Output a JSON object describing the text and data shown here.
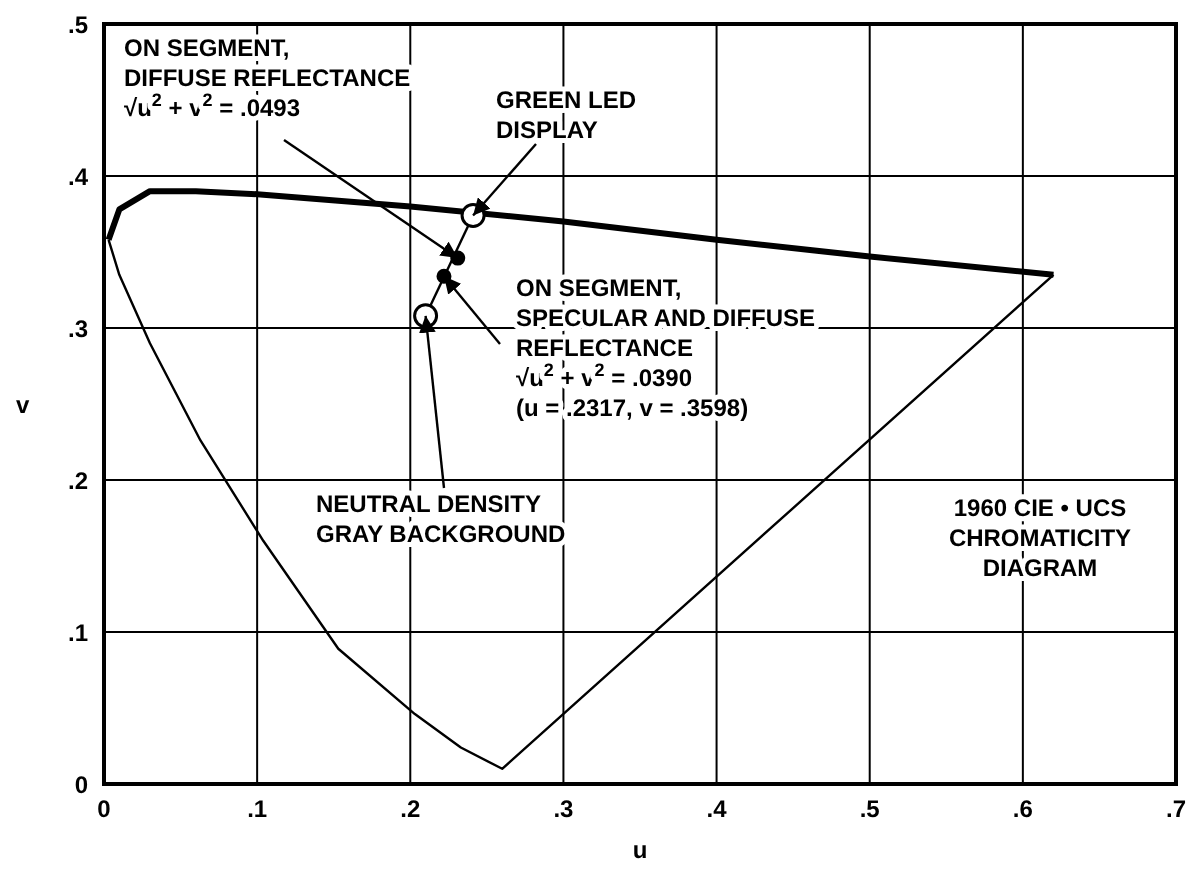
{
  "chart_data": {
    "type": "line",
    "xlabel": "u",
    "ylabel": "v",
    "xlim": [
      0,
      0.7
    ],
    "ylim": [
      0,
      0.5
    ],
    "xticks": [
      0,
      {
        "value": 0.1,
        "label": ".1"
      },
      {
        "value": 0.2,
        "label": ".2"
      },
      {
        "value": 0.3,
        "label": ".3"
      },
      {
        "value": 0.4,
        "label": ".4"
      },
      {
        "value": 0.5,
        "label": ".5"
      },
      {
        "value": 0.6,
        "label": ".6"
      },
      {
        "value": 0.7,
        "label": ".7"
      }
    ],
    "yticks": [
      0,
      {
        "value": 0.1,
        "label": ".1"
      },
      {
        "value": 0.2,
        "label": ".2"
      },
      {
        "value": 0.3,
        "label": ".3"
      },
      {
        "value": 0.4,
        "label": ".4"
      },
      {
        "value": 0.5,
        "label": ".5"
      }
    ],
    "grid": true,
    "series": [
      {
        "color": "#000000",
        "marker": "none",
        "x": [
          0.003,
          0.01,
          0.03,
          0.06,
          0.1,
          0.2,
          0.3,
          0.4,
          0.5,
          0.62
        ],
        "values": [
          0.358,
          0.378,
          0.39,
          0.39,
          0.388,
          0.38,
          0.37,
          0.358,
          0.347,
          0.335
        ]
      },
      {
        "color": "#000000",
        "marker": "none",
        "x": [
          0.003,
          0.01,
          0.03,
          0.063,
          0.104,
          0.153,
          0.203,
          0.233,
          0.26,
          0.62
        ],
        "values": [
          0.358,
          0.335,
          0.29,
          0.226,
          0.16,
          0.089,
          0.046,
          0.024,
          0.01,
          0.335
        ]
      },
      {
        "color": "#000000",
        "marker": "none",
        "x": [
          0.241,
          0.21
        ],
        "values": [
          0.374,
          0.308
        ]
      },
      {
        "type": "scatter",
        "color": "#000000",
        "marker": "circle",
        "x": [
          0.231,
          0.222
        ],
        "values": [
          0.346,
          0.334
        ]
      },
      {
        "type": "scatter",
        "color": "#ffffff",
        "marker": "circle",
        "x": [
          0.241,
          0.21
        ],
        "values": [
          0.374,
          0.308
        ]
      }
    ],
    "annotations": [
      {
        "text": "ON SEGMENT,\nDIFFUSE REFLECTANCE\n√u$^{2}$ + v$^{2}$ = .0493",
        "x": 0.231,
        "y": 0.346
      },
      {
        "text": "GREEN LED\nDISPLAY",
        "x": 0.241,
        "y": 0.374
      },
      "ON SEGMENT,\nSPECULAR AND DIFFUSE\nREFLECTANCE\n√u$^{2}$ + v$^{2}$ = .0390\n(u = .2317, v = .3598)",
      {
        "text": "NEUTRAL DENSITY\nGRAY BACKGROUND",
        "x": 0.21,
        "y": 0.308
      },
      "1960 CIE • UCS\nCHROMATICITY\nDIAGRAM"
    ]
  }
}
